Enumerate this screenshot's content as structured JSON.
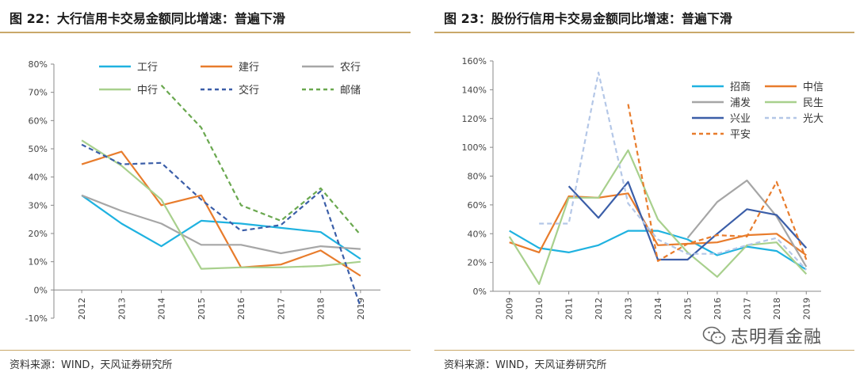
{
  "left": {
    "title": "图 22：大行信用卡交易金额同比增速：普遍下滑",
    "source": "资料来源：WIND，天风证券研究所"
  },
  "right": {
    "title": "图 23：股份行信用卡交易金额同比增速：普遍下滑",
    "source": "资料来源：WIND，天风证券研究所"
  },
  "watermark": {
    "text": "志明看金融",
    "icon": "wechat-icon"
  },
  "chart_data": [
    {
      "type": "line",
      "x": [
        "2012",
        "2013",
        "2014",
        "2015",
        "2016",
        "2017",
        "2018",
        "2019"
      ],
      "ylim": [
        -10,
        80
      ],
      "yticks": [
        "-10%",
        "0%",
        "10%",
        "20%",
        "30%",
        "40%",
        "50%",
        "60%",
        "70%",
        "80%"
      ],
      "grid": false,
      "legend_position": "top",
      "series": [
        {
          "name": "工行",
          "color": "#1fb2e0",
          "dash": false,
          "values": [
            33.5,
            23.5,
            15.5,
            24.5,
            23.5,
            22,
            20.5,
            11
          ]
        },
        {
          "name": "建行",
          "color": "#e87c2c",
          "dash": false,
          "values": [
            44.5,
            49,
            30,
            33.5,
            8,
            9,
            14,
            5
          ]
        },
        {
          "name": "农行",
          "color": "#a6a6a6",
          "dash": false,
          "values": [
            33.5,
            28,
            23.5,
            16,
            16,
            13,
            15.5,
            14.5
          ]
        },
        {
          "name": "中行",
          "color": "#a8d08d",
          "dash": false,
          "values": [
            53,
            44,
            32,
            7.5,
            8,
            8,
            8.5,
            10
          ]
        },
        {
          "name": "交行",
          "color": "#3b5ea8",
          "dash": true,
          "values": [
            51.5,
            44.5,
            45,
            32,
            21,
            23,
            35,
            -6
          ]
        },
        {
          "name": "邮储",
          "color": "#6aa84f",
          "dash": true,
          "values": [
            null,
            null,
            72.5,
            57.5,
            30,
            24.5,
            36,
            19.5
          ]
        }
      ]
    },
    {
      "type": "line",
      "x": [
        "2009",
        "2010",
        "2011",
        "2012",
        "2013",
        "2014",
        "2015",
        "2016",
        "2017",
        "2018",
        "2019"
      ],
      "ylim": [
        0,
        160
      ],
      "yticks": [
        "0%",
        "20%",
        "40%",
        "60%",
        "80%",
        "100%",
        "120%",
        "140%",
        "160%"
      ],
      "grid": false,
      "legend_position": "top-right",
      "series": [
        {
          "name": "招商",
          "color": "#1fb2e0",
          "dash": false,
          "values": [
            42,
            30,
            27,
            32,
            42,
            42,
            36,
            25,
            31,
            28,
            15
          ]
        },
        {
          "name": "中信",
          "color": "#e87c2c",
          "dash": false,
          "values": [
            34,
            27,
            66,
            65,
            68,
            32,
            33,
            34,
            39,
            40,
            25
          ]
        },
        {
          "name": "浦发",
          "color": "#a6a6a6",
          "dash": false,
          "values": [
            null,
            null,
            null,
            null,
            null,
            null,
            37,
            62,
            77,
            52,
            17
          ]
        },
        {
          "name": "民生",
          "color": "#a8d08d",
          "dash": false,
          "values": [
            38,
            5,
            65,
            65,
            98,
            50,
            27,
            10,
            32,
            34,
            12
          ]
        },
        {
          "name": "兴业",
          "color": "#3b5ea8",
          "dash": false,
          "values": [
            null,
            null,
            73,
            51,
            76,
            22,
            22,
            40,
            57,
            53,
            30
          ]
        },
        {
          "name": "光大",
          "color": "#b4c7e7",
          "dash": true,
          "values": [
            null,
            47,
            47,
            152,
            61,
            36,
            26,
            26,
            32,
            37,
            15
          ]
        },
        {
          "name": "平安",
          "color": "#e87c2c",
          "dash": true,
          "values": [
            null,
            null,
            null,
            null,
            130,
            21,
            33,
            39,
            38,
            76,
            22
          ]
        }
      ]
    }
  ]
}
